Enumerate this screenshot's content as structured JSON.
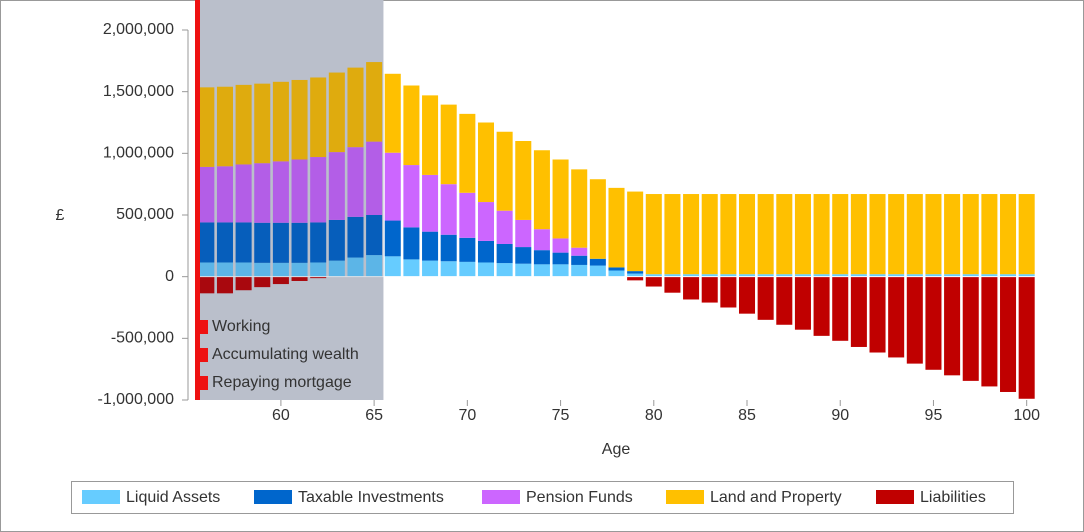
{
  "chart_data": {
    "type": "bar",
    "stacked": true,
    "x_label": "Age",
    "y_label": "£",
    "x": [
      56,
      57,
      58,
      59,
      60,
      61,
      62,
      63,
      64,
      65,
      66,
      67,
      68,
      69,
      70,
      71,
      72,
      73,
      74,
      75,
      76,
      77,
      78,
      79,
      80,
      81,
      82,
      83,
      84,
      85,
      86,
      87,
      88,
      89,
      90,
      91,
      92,
      93,
      94,
      95,
      96,
      97,
      98,
      99,
      100
    ],
    "xlim": [
      55.5,
      100.5
    ],
    "xticks": [
      60,
      65,
      70,
      75,
      80,
      85,
      90,
      95,
      100
    ],
    "ylim": [
      -1000000,
      2000000
    ],
    "yticks": [
      {
        "value": -1000000,
        "label": "-1,000,000"
      },
      {
        "value": -500000,
        "label": "-500,000"
      },
      0,
      {
        "value": 500000,
        "label": "500,000"
      },
      {
        "value": 1000000,
        "label": "1,000,000"
      },
      {
        "value": 1500000,
        "label": "1,500,000"
      },
      {
        "value": 2000000,
        "label": "2,000,000"
      }
    ],
    "highlight": {
      "from": 55.5,
      "to": 65.5
    },
    "annotations": [
      "Working",
      "Accumulating wealth",
      "Repaying mortgage"
    ],
    "legend": "bottom",
    "series": [
      {
        "name": "Liquid Assets",
        "color": "#66ccff",
        "values": [
          115000,
          115000,
          115000,
          112000,
          112000,
          112000,
          115000,
          130000,
          155000,
          175000,
          165000,
          140000,
          130000,
          125000,
          120000,
          115000,
          110000,
          105000,
          100000,
          100000,
          95000,
          90000,
          50000,
          25000,
          20000,
          20000,
          20000,
          20000,
          20000,
          20000,
          20000,
          20000,
          20000,
          20000,
          20000,
          20000,
          20000,
          20000,
          20000,
          20000,
          20000,
          20000,
          20000,
          20000,
          20000
        ]
      },
      {
        "name": "Taxable Investments",
        "color": "#0066cc",
        "values": [
          325000,
          325000,
          325000,
          325000,
          325000,
          325000,
          325000,
          330000,
          330000,
          325000,
          290000,
          260000,
          235000,
          215000,
          195000,
          175000,
          155000,
          135000,
          115000,
          95000,
          75000,
          55000,
          25000,
          20000,
          0,
          0,
          0,
          0,
          0,
          0,
          0,
          0,
          0,
          0,
          0,
          0,
          0,
          0,
          0,
          0,
          0,
          0,
          0,
          0,
          0
        ]
      },
      {
        "name": "Pension Funds",
        "color": "#cc66ff",
        "values": [
          450000,
          455000,
          470000,
          483000,
          498000,
          513000,
          530000,
          550000,
          565000,
          595000,
          550000,
          505000,
          460000,
          410000,
          365000,
          315000,
          270000,
          220000,
          170000,
          115000,
          65000,
          0,
          0,
          0,
          0,
          0,
          0,
          0,
          0,
          0,
          0,
          0,
          0,
          0,
          0,
          0,
          0,
          0,
          0,
          0,
          0,
          0,
          0,
          0,
          0
        ]
      },
      {
        "name": "Land and Property",
        "color": "#ffc000",
        "values": [
          645000,
          645000,
          645000,
          645000,
          645000,
          645000,
          645000,
          645000,
          645000,
          645000,
          640000,
          645000,
          645000,
          645000,
          640000,
          645000,
          640000,
          640000,
          640000,
          640000,
          635000,
          645000,
          645000,
          645000,
          650000,
          650000,
          650000,
          650000,
          650000,
          650000,
          650000,
          650000,
          650000,
          650000,
          650000,
          650000,
          650000,
          650000,
          650000,
          650000,
          650000,
          650000,
          650000,
          650000,
          650000
        ]
      },
      {
        "name": "Liabilities",
        "color": "#c00000",
        "values": [
          -135000,
          -135000,
          -110000,
          -85000,
          -60000,
          -35000,
          -12000,
          0,
          0,
          0,
          0,
          0,
          0,
          0,
          0,
          0,
          0,
          0,
          0,
          0,
          0,
          0,
          0,
          -30000,
          -80000,
          -130000,
          -185000,
          -210000,
          -250000,
          -300000,
          -350000,
          -390000,
          -430000,
          -480000,
          -520000,
          -570000,
          -615000,
          -655000,
          -705000,
          -755000,
          -800000,
          -845000,
          -890000,
          -935000,
          -990000
        ]
      }
    ]
  }
}
